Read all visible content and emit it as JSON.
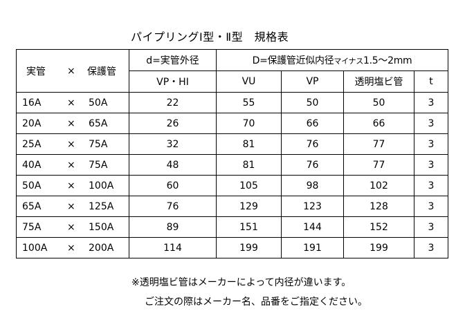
{
  "title": "パイプリングⅠ型・Ⅱ型　規格表",
  "header": {
    "pipe_label": "実管",
    "times": "×",
    "protect_label": "保護管",
    "d_label": "d=実管外径",
    "D_label_main": "D=保護管近似内径",
    "D_label_small": "マイナス",
    "D_label_tail": "1.5～2mm",
    "sub_vphi": "VP・HI",
    "sub_vu": "VU",
    "sub_vp": "VP",
    "sub_transparent": "透明塩ビ管",
    "sub_t": "t"
  },
  "rows": [
    {
      "pipe": "16A",
      "times": "×",
      "protect": "50A",
      "d": "22",
      "vu": "55",
      "vp": "50",
      "tr": "50",
      "t": "3"
    },
    {
      "pipe": "20A",
      "times": "×",
      "protect": "65A",
      "d": "26",
      "vu": "70",
      "vp": "66",
      "tr": "66",
      "t": "3"
    },
    {
      "pipe": "25A",
      "times": "×",
      "protect": "75A",
      "d": "32",
      "vu": "81",
      "vp": "76",
      "tr": "77",
      "t": "3"
    },
    {
      "pipe": "40A",
      "times": "×",
      "protect": "75A",
      "d": "48",
      "vu": "81",
      "vp": "76",
      "tr": "77",
      "t": "3"
    },
    {
      "pipe": "50A",
      "times": "×",
      "protect": "100A",
      "d": "60",
      "vu": "105",
      "vp": "98",
      "tr": "102",
      "t": "3"
    },
    {
      "pipe": "65A",
      "times": "×",
      "protect": "125A",
      "d": "76",
      "vu": "129",
      "vp": "123",
      "tr": "128",
      "t": "3"
    },
    {
      "pipe": "75A",
      "times": "×",
      "protect": "150A",
      "d": "89",
      "vu": "151",
      "vp": "144",
      "tr": "152",
      "t": "3"
    },
    {
      "pipe": "100A",
      "times": "×",
      "protect": "200A",
      "d": "114",
      "vu": "199",
      "vp": "191",
      "tr": "199",
      "t": "3"
    }
  ],
  "notes": {
    "note1": "※透明塩ビ管はメーカーによって内径が違います。",
    "note2": "ご注文の際はメーカー名、品番をご指定ください。"
  }
}
